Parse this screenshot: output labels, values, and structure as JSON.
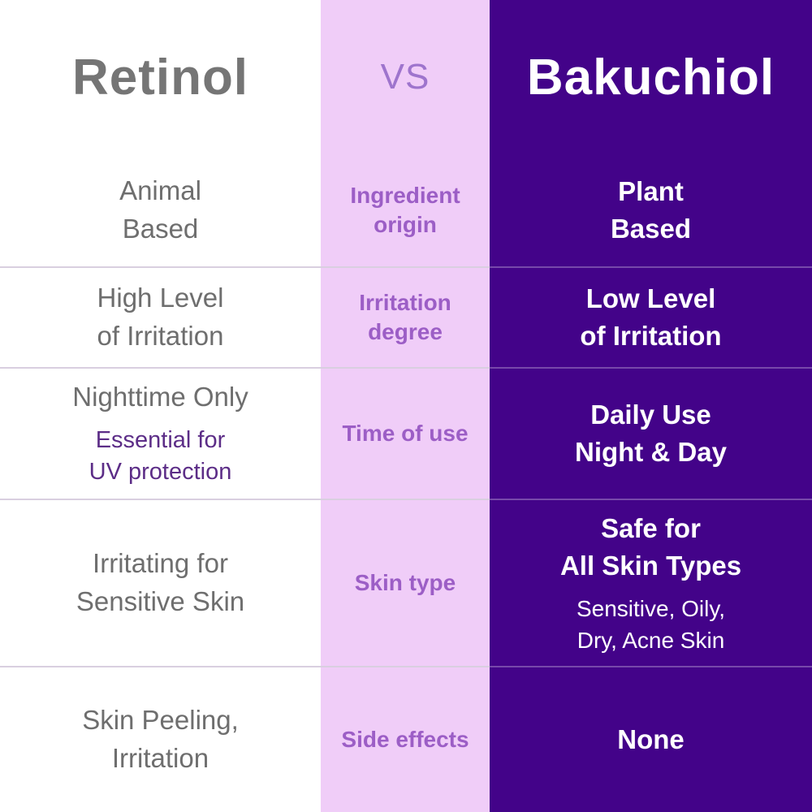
{
  "header": {
    "left_title": "Retinol",
    "vs_label": "VS",
    "right_title": "Bakuchiol"
  },
  "colors": {
    "left_column_bg": "#ffffff",
    "middle_column_bg": "#f0cdf8",
    "right_column_bg": "#430389",
    "left_title_text": "#757575",
    "vs_text": "#9e74cd",
    "category_text": "#9c5ec6",
    "left_value_text": "#6e6e6e",
    "left_note_text": "#5c2d87",
    "right_text": "#ffffff"
  },
  "rows": [
    {
      "category": "Ingredient\norigin",
      "retinol": "Animal\nBased",
      "bakuchiol": "Plant\nBased"
    },
    {
      "category": "Irritation\ndegree",
      "retinol": "High Level\nof Irritation",
      "bakuchiol": "Low Level\nof Irritation"
    },
    {
      "category": "Time of use",
      "retinol": "Nighttime Only",
      "retinol_note": "Essential for\nUV protection",
      "bakuchiol": "Daily Use\nNight & Day"
    },
    {
      "category": "Skin type",
      "retinol": "Irritating for\nSensitive Skin",
      "bakuchiol": "Safe for\nAll Skin Types",
      "bakuchiol_note": "Sensitive, Oily,\nDry, Acne Skin"
    },
    {
      "category": "Side effects",
      "retinol": "Skin Peeling,\nIrritation",
      "bakuchiol": "None"
    }
  ]
}
